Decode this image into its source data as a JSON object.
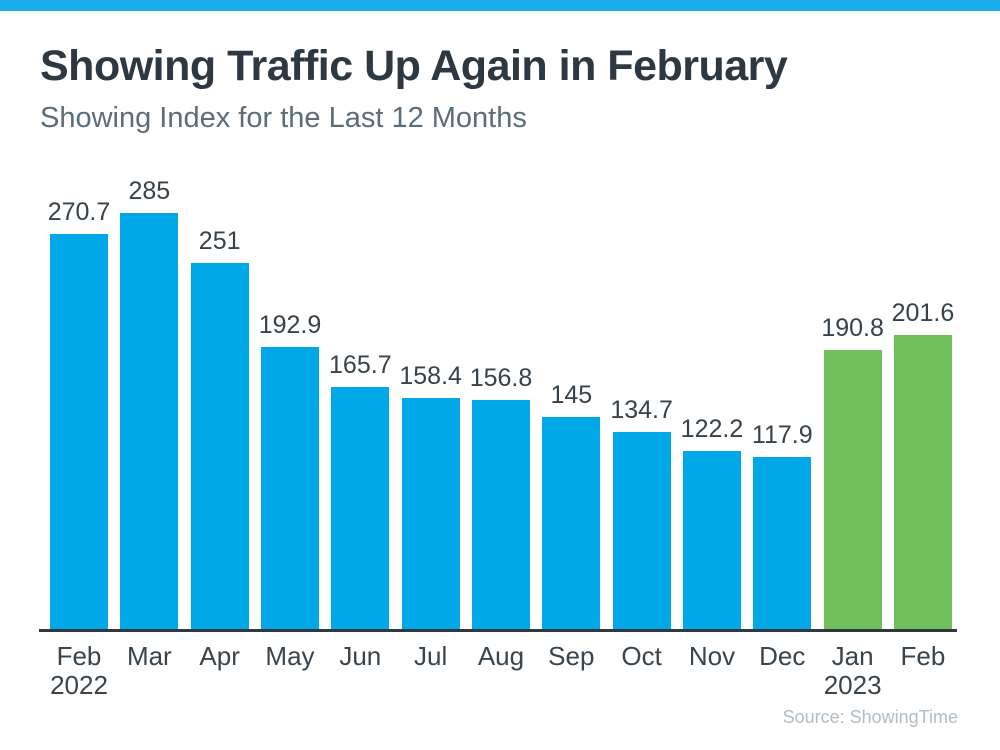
{
  "page": {
    "background_color": "#FFFFFF",
    "accent_stripe_color": "#1AACEC"
  },
  "header": {
    "title": "Showing Traffic Up Again in February",
    "subtitle": "Showing Index for the Last 12 Months"
  },
  "footer": {
    "source": "Source: ShowingTime"
  },
  "chart_data": {
    "type": "bar",
    "title": "Showing Traffic Up Again in February",
    "subtitle": "Showing Index for the Last 12 Months",
    "categories": [
      "Feb\n2022",
      "Mar",
      "Apr",
      "May",
      "Jun",
      "Jul",
      "Aug",
      "Sep",
      "Oct",
      "Nov",
      "Dec",
      "Jan\n2023",
      "Feb"
    ],
    "values": [
      270.7,
      285,
      251,
      192.9,
      165.7,
      158.4,
      156.8,
      145,
      134.7,
      122.2,
      117.9,
      190.8,
      201.6
    ],
    "data_labels": [
      "270.7",
      "285",
      "251",
      "192.9",
      "165.7",
      "158.4",
      "156.8",
      "145",
      "134.7",
      "122.2",
      "117.9",
      "190.8",
      "201.6"
    ],
    "bar_colors": [
      "#00A8E8",
      "#00A8E8",
      "#00A8E8",
      "#00A8E8",
      "#00A8E8",
      "#00A8E8",
      "#00A8E8",
      "#00A8E8",
      "#00A8E8",
      "#00A8E8",
      "#00A8E8",
      "#70C05C",
      "#70C05C"
    ],
    "palette": {
      "blue": "#00A8E8",
      "green": "#70C05C",
      "axis_line": "#2F383E",
      "label_text": "#37424A"
    },
    "xlabel": "",
    "ylabel": "",
    "ylim": [
      0,
      285
    ],
    "grid": false,
    "legend": false,
    "y_axis_visible": false,
    "source": "Source: ShowingTime"
  }
}
